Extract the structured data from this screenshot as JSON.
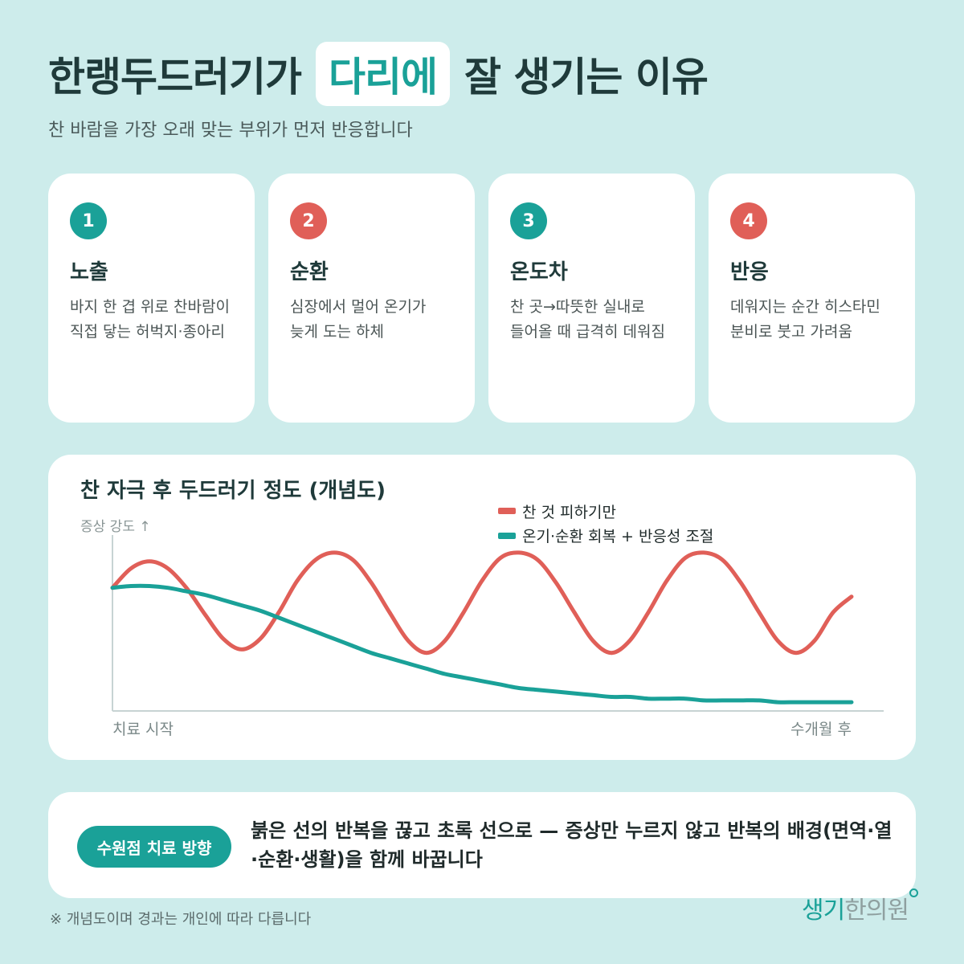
{
  "title": {
    "before": "한랭두드러기가",
    "highlight": "다리에",
    "after": "잘 생기는 이유"
  },
  "subtitle": "찬 바람을 가장 오래 맞는 부위가 먼저 반응합니다",
  "cards": [
    {
      "num": "1",
      "title": "노출",
      "desc": "바지 한 겹 위로 찬바람이 직접 닿는 허벅지·종아리",
      "num_color": "#1aa198"
    },
    {
      "num": "2",
      "title": "순환",
      "desc": "심장에서 멀어 온기가 늦게 도는 하체",
      "num_color": "#e05f58"
    },
    {
      "num": "3",
      "title": "온도차",
      "desc": "찬 곳→따뜻한 실내로 들어올 때 급격히 데워짐",
      "num_color": "#1aa198"
    },
    {
      "num": "4",
      "title": "반응",
      "desc": "데워지는 순간 히스타민 분비로 붓고 가려움",
      "num_color": "#e05f58"
    }
  ],
  "chart_data": {
    "type": "line",
    "title": "찬 자극 후 두드러기 정도 (개념도)",
    "ylabel": "증상 강도 ↑",
    "x_start_label": "치료 시작",
    "x_end_label": "수개월 후",
    "x": [
      0,
      0.5,
      1,
      1.5,
      2,
      2.5,
      3,
      3.5,
      4,
      4.5,
      5,
      5.5,
      6,
      6.5,
      7,
      7.5,
      8,
      8.5,
      9,
      9.5,
      10,
      10.5,
      11,
      11.5,
      12,
      12.5,
      13,
      13.5,
      14,
      14.5,
      15,
      15.5,
      16,
      16.5,
      17,
      17.5,
      18,
      18.5,
      19,
      19.5,
      20
    ],
    "series": [
      {
        "name": "찬 것 피하기만",
        "color": "#e05f58",
        "values": [
          0.7,
          0.81,
          0.85,
          0.81,
          0.7,
          0.55,
          0.41,
          0.35,
          0.41,
          0.56,
          0.74,
          0.86,
          0.9,
          0.86,
          0.73,
          0.56,
          0.4,
          0.33,
          0.4,
          0.56,
          0.74,
          0.87,
          0.9,
          0.86,
          0.73,
          0.56,
          0.4,
          0.33,
          0.4,
          0.56,
          0.74,
          0.87,
          0.9,
          0.86,
          0.73,
          0.56,
          0.4,
          0.33,
          0.4,
          0.56,
          0.65
        ]
      },
      {
        "name": "온기·순환 회복 + 반응성 조절",
        "color": "#1aa198",
        "values": [
          0.7,
          0.71,
          0.71,
          0.7,
          0.68,
          0.66,
          0.63,
          0.6,
          0.57,
          0.53,
          0.49,
          0.45,
          0.41,
          0.37,
          0.33,
          0.3,
          0.27,
          0.24,
          0.21,
          0.19,
          0.17,
          0.15,
          0.13,
          0.12,
          0.11,
          0.1,
          0.09,
          0.08,
          0.08,
          0.07,
          0.07,
          0.07,
          0.06,
          0.06,
          0.06,
          0.06,
          0.05,
          0.05,
          0.05,
          0.05,
          0.05
        ]
      }
    ],
    "ylim": [
      0,
      1
    ],
    "xlim": [
      0,
      20
    ],
    "legend_position": "top-right"
  },
  "bottom": {
    "badge": "수원점 치료 방향",
    "text": "붉은 선의 반복을 끊고 초록 선으로 — 증상만 누르지 않고 반복의 배경(면역·열·순환·생활)을 함께 바꿉니다"
  },
  "footnote": "※ 개념도이며 경과는 개인에 따라 다릅니다",
  "logo": {
    "part1": "생기",
    "part2": "한의원"
  },
  "colors": {
    "teal": "#1aa198",
    "red": "#e05f58",
    "background": "#cdeceb"
  }
}
